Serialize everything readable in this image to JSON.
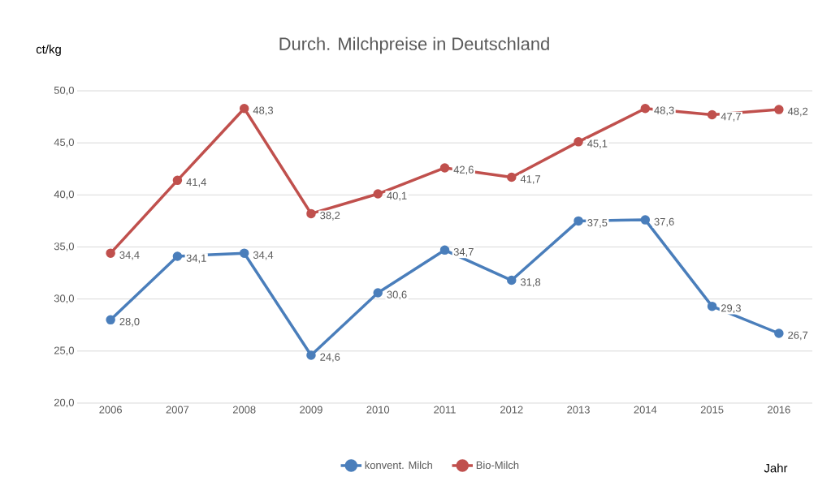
{
  "chart_data": {
    "type": "line",
    "title": "Durch. Milchpreise in Deutschland",
    "ylabel": "ct/kg",
    "xlabel": "Jahr",
    "categories": [
      "2006",
      "2007",
      "2008",
      "2009",
      "2010",
      "2011",
      "2012",
      "2013",
      "2014",
      "2015",
      "2016"
    ],
    "series": [
      {
        "name": "konvent. Milch",
        "color": "#4a7ebb",
        "values": [
          28.0,
          34.1,
          34.4,
          24.6,
          30.6,
          34.7,
          31.8,
          37.5,
          37.6,
          29.3,
          26.7
        ],
        "value_labels": [
          "28,0",
          "34,1",
          "34,4",
          "24,6",
          "30,6",
          "34,7",
          "31,8",
          "37,5",
          "37,6",
          "29,3",
          "26,7"
        ]
      },
      {
        "name": "Bio-Milch",
        "color": "#c0504d",
        "values": [
          34.4,
          41.4,
          48.3,
          38.2,
          40.1,
          42.6,
          41.7,
          45.1,
          48.3,
          47.7,
          48.2
        ],
        "value_labels": [
          "34,4",
          "41,4",
          "48,3",
          "38,2",
          "40,1",
          "42,6",
          "41,7",
          "45,1",
          "48,3",
          "47,7",
          "48,2"
        ]
      }
    ],
    "ylim": [
      20,
      50
    ],
    "yticks": [
      {
        "value": 20,
        "label": "20,0"
      },
      {
        "value": 25,
        "label": "25,0"
      },
      {
        "value": 30,
        "label": "30,0"
      },
      {
        "value": 35,
        "label": "35,0"
      },
      {
        "value": 40,
        "label": "40,0"
      },
      {
        "value": 45,
        "label": "45,0"
      },
      {
        "value": 50,
        "label": "50,0"
      }
    ],
    "grid": "y",
    "legend": "bottom",
    "marker": "circle",
    "line_style": "solid"
  }
}
